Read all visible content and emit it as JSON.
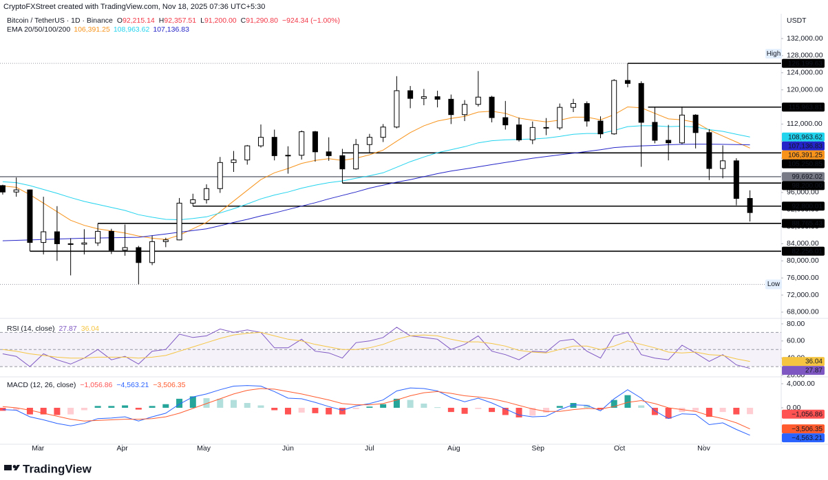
{
  "header": {
    "attribution": "CryptoFXStreet created with TradingView.com, Nov 18, 2025 07:36 UTC+5:30"
  },
  "footer": {
    "brand": "TradingView"
  },
  "chart_data": [
    {
      "type": "candlestick",
      "title": "Bitcoin / TetherUS · 1D · Binance",
      "ohlc_legend": [
        {
          "label": "O",
          "value": "92,215.14"
        },
        {
          "label": "H",
          "value": "92,357.51"
        },
        {
          "label": "L",
          "value": "91,200.00"
        },
        {
          "label": "C",
          "value": "91,290.80"
        }
      ],
      "change": "−924.34 (−1.00%)",
      "unit": "USDT",
      "xlim": [
        -0.2,
        57.3
      ],
      "ylim": [
        66700,
        137800
      ],
      "yticks": [
        {
          "value": 68000,
          "label": "68,000.00"
        },
        {
          "value": 72000,
          "label": "72,000.00"
        },
        {
          "value": 76000,
          "label": "76,000.00"
        },
        {
          "value": 80000,
          "label": "80,000.00"
        },
        {
          "value": 84000,
          "label": "84,000.00"
        },
        {
          "value": 88000,
          "label": "88,000.00"
        },
        {
          "value": 92000,
          "label": "92,000.00"
        },
        {
          "value": 96000,
          "label": "96,000.00"
        },
        {
          "value": 100000,
          "label": "100,000.00"
        },
        {
          "value": 104000,
          "label": "104,000.00"
        },
        {
          "value": 108000,
          "label": "108,000.00"
        },
        {
          "value": 112000,
          "label": "112,000.00"
        },
        {
          "value": 116000,
          "label": "116,000.00"
        },
        {
          "value": 120000,
          "label": "120,000.00"
        },
        {
          "value": 124000,
          "label": "124,000.00"
        },
        {
          "value": 128000,
          "label": "128,000.00"
        },
        {
          "value": 132000,
          "label": "132,000.00"
        }
      ],
      "grid": false,
      "up_color": "#ffffff",
      "down_color": "#000000",
      "open": [
        97600,
        96100,
        96600,
        84300,
        86800,
        84000,
        83900,
        84200,
        86900,
        82500,
        83100,
        79600,
        84500,
        84900,
        93500,
        94300,
        96900,
        103000,
        103600,
        106900,
        108900,
        104600,
        104700,
        110200,
        105500,
        104600,
        101500,
        107200,
        108900,
        111300,
        119800,
        118000,
        118400,
        117800,
        114200,
        116600,
        118300,
        113500,
        111800,
        108300,
        111200,
        111100,
        115900,
        116800,
        112700,
        109700,
        122200,
        121500,
        112400,
        108200,
        107600,
        114100,
        110000,
        101600,
        103400,
        94600
      ],
      "high": [
        97800,
        99500,
        96700,
        95000,
        92800,
        85300,
        87400,
        88700,
        87500,
        88500,
        83500,
        85900,
        85400,
        94700,
        95700,
        97900,
        104300,
        105700,
        107100,
        111900,
        110700,
        106800,
        110500,
        110400,
        108900,
        106200,
        108500,
        109700,
        112000,
        123200,
        120900,
        120200,
        119800,
        118900,
        117600,
        124400,
        118600,
        117400,
        113500,
        112600,
        113400,
        116800,
        117900,
        117300,
        113800,
        122500,
        126199.63,
        122000,
        115900,
        111800,
        116100,
        114300,
        110800,
        107000,
        104000,
        96500
      ],
      "low": [
        95500,
        95000,
        82300,
        81500,
        80000,
        76600,
        81500,
        83500,
        81600,
        81200,
        74500,
        79000,
        83200,
        84800,
        92800,
        93400,
        95900,
        100800,
        102500,
        106500,
        103500,
        100400,
        103700,
        103200,
        103400,
        98200,
        101300,
        105200,
        107800,
        111000,
        115700,
        116400,
        115900,
        112000,
        112700,
        116100,
        112400,
        110700,
        107900,
        107300,
        109400,
        110600,
        114800,
        111400,
        108700,
        109500,
        120600,
        102000,
        107500,
        103500,
        107300,
        106300,
        98900,
        99300,
        93000,
        89200
      ],
      "close": [
        96100,
        96600,
        84300,
        86800,
        84000,
        83900,
        84200,
        86900,
        82500,
        83100,
        79600,
        84500,
        84900,
        93500,
        94300,
        96900,
        103000,
        103600,
        106900,
        108900,
        104600,
        104700,
        110200,
        105500,
        104600,
        101500,
        107200,
        108900,
        111300,
        119800,
        118000,
        118400,
        117800,
        114200,
        116600,
        118300,
        113500,
        111800,
        108300,
        111200,
        111100,
        115900,
        116800,
        112700,
        109700,
        122200,
        121500,
        112400,
        108200,
        107600,
        114100,
        110000,
        101600,
        103400,
        94600,
        91290.8
      ],
      "ema": {
        "label": "EMA 20/50/100/200",
        "series": [
          {
            "color": "#f7931a",
            "last_label": "106,391.25",
            "values": [
              97500,
              97200,
              95500,
              93500,
              91500,
              89500,
              88300,
              87500,
              87000,
              86500,
              85800,
              85300,
              85000,
              86000,
              87500,
              89000,
              91500,
              94000,
              96500,
              99000,
              100600,
              101600,
              102800,
              103500,
              103900,
              103500,
              104000,
              104800,
              105900,
              108000,
              110000,
              111600,
              112700,
              113300,
              113800,
              114800,
              115000,
              114500,
              113400,
              112900,
              112500,
              112900,
              113600,
              113600,
              113000,
              114200,
              116000,
              115800,
              114500,
              113200,
              113000,
              112400,
              110600,
              109200,
              107800,
              106391.25
            ]
          },
          {
            "color": "#22d3ee",
            "last_label": "108,963.62",
            "values": [
              98500,
              98300,
              97600,
              96700,
              95800,
              94800,
              93900,
              93200,
              92500,
              91800,
              90800,
              90200,
              89700,
              89600,
              89900,
              90300,
              91200,
              92200,
              93300,
              94500,
              95400,
              96100,
              97000,
              97700,
              98300,
              98700,
              99300,
              99900,
              100600,
              101900,
              103200,
              104300,
              105300,
              106000,
              106700,
              107600,
              108100,
              108300,
              108400,
              108500,
              108700,
              109100,
              109600,
              109800,
              109800,
              110500,
              111400,
              111600,
              111600,
              111400,
              111500,
              111300,
              110700,
              110300,
              109600,
              108963.62
            ]
          },
          {
            "color": "#2424c8",
            "last_label": "107,136.83",
            "values": [
              84700,
              84800,
              84900,
              85000,
              85100,
              85200,
              85300,
              85350,
              85400,
              85450,
              85500,
              85900,
              86300,
              86700,
              87100,
              87500,
              88200,
              89000,
              89700,
              90500,
              91200,
              92000,
              92800,
              93600,
              94500,
              95300,
              96100,
              97000,
              97700,
              98400,
              99000,
              99700,
              100400,
              101000,
              101500,
              102000,
              102500,
              103000,
              103500,
              104000,
              104400,
              104800,
              105200,
              105600,
              106000,
              106500,
              106700,
              106900,
              107000,
              107150,
              107250,
              107300,
              107300,
              107250,
              107200,
              107136.83
            ]
          }
        ]
      },
      "levels": [
        {
          "value": 126199.63,
          "label": "126,199.63",
          "start": 46,
          "color": "#000000"
        },
        {
          "value": 115963.81,
          "label": "115,963.81",
          "start": 47.5,
          "color": "#000000"
        },
        {
          "value": 105250.85,
          "label": "105,250.85",
          "start": 25,
          "color": "#000000"
        },
        {
          "value": 99692.02,
          "label": "99,692.02",
          "start": -0.2,
          "color": "#787b86"
        },
        {
          "value": 98200,
          "label": "98,200.00",
          "start": 25,
          "color": "#000000"
        },
        {
          "value": 92800.01,
          "label": "92,800.01",
          "start": 14,
          "color": "#000000"
        },
        {
          "value": 88765.43,
          "label": "88,765.43",
          "start": 7,
          "color": "#000000"
        },
        {
          "value": 82256.01,
          "label": "82,256.01",
          "start": 2,
          "color": "#000000"
        }
      ],
      "high_label": "High",
      "low_label": "Low"
    },
    {
      "type": "line",
      "title": "RSI (14, close)",
      "ylim": [
        18,
        84
      ],
      "yticks": [
        {
          "value": 20,
          "label": "20.00"
        },
        {
          "value": 40,
          "label": "40.00"
        },
        {
          "value": 60,
          "label": "60.00"
        },
        {
          "value": 80,
          "label": "80.00"
        }
      ],
      "bands": [
        30,
        50,
        70
      ],
      "band_color": "#7e57c2",
      "series": [
        {
          "color": "#7e57c2",
          "last_label": "27.87",
          "values": [
            45,
            42,
            30,
            45,
            38,
            33,
            40,
            50,
            38,
            42,
            33,
            48,
            50,
            68,
            64,
            66,
            74,
            70,
            73,
            70,
            52,
            52,
            62,
            48,
            46,
            40,
            58,
            60,
            64,
            76,
            66,
            64,
            62,
            50,
            56,
            66,
            48,
            44,
            38,
            48,
            47,
            60,
            62,
            48,
            40,
            66,
            70,
            44,
            40,
            38,
            55,
            46,
            36,
            44,
            32,
            27.87
          ]
        },
        {
          "color": "#f5c542",
          "last_label": "36.04",
          "values": [
            50,
            48,
            45,
            43,
            41,
            40,
            40,
            41,
            41,
            41,
            40,
            41,
            43,
            48,
            53,
            58,
            63,
            67,
            69,
            70,
            66,
            62,
            60,
            56,
            53,
            50,
            50,
            52,
            56,
            62,
            66,
            67,
            66,
            62,
            59,
            59,
            57,
            54,
            49,
            47,
            46,
            50,
            54,
            54,
            50,
            54,
            60,
            56,
            52,
            47,
            46,
            47,
            44,
            43,
            39,
            36.04
          ]
        }
      ]
    },
    {
      "type": "macd",
      "title": "MACD (12, 26, close)",
      "ylim": [
        -5943,
        4914
      ],
      "yticks": [
        {
          "value": 0,
          "label": "0.00"
        },
        {
          "value": 4000,
          "label": "4,000.00"
        }
      ],
      "xticks": [
        {
          "value": 2.6,
          "label": "Mar"
        },
        {
          "value": 8.8,
          "label": "Apr"
        },
        {
          "value": 14.8,
          "label": "May"
        },
        {
          "value": 21,
          "label": "Jun"
        },
        {
          "value": 27,
          "label": "Jul"
        },
        {
          "value": 33.2,
          "label": "Aug"
        },
        {
          "value": 39.4,
          "label": "Sep"
        },
        {
          "value": 45.4,
          "label": "Oct"
        },
        {
          "value": 51.6,
          "label": "Nov"
        }
      ],
      "histogram": {
        "colors": [
          "#26a69a",
          "#b2dfdb",
          "#ff5252",
          "#ffcdd2"
        ],
        "last_label": "−1,056.86",
        "values": [
          -500,
          -400,
          -1100,
          -1100,
          -1200,
          -1100,
          -400,
          300,
          300,
          400,
          -300,
          300,
          600,
          1500,
          1900,
          1600,
          1500,
          1300,
          800,
          400,
          -400,
          -1100,
          -800,
          -900,
          -1100,
          -1100,
          -200,
          200,
          600,
          1500,
          1300,
          700,
          100,
          -700,
          -1000,
          -200,
          -700,
          -1200,
          -1600,
          -1300,
          -800,
          300,
          800,
          500,
          -300,
          1300,
          2100,
          400,
          -1200,
          -1800,
          -700,
          -500,
          -1500,
          -700,
          -1100,
          -1056.86
        ]
      },
      "series": [
        {
          "color": "#2962ff",
          "last_label": "−4,563.21",
          "values": [
            -300,
            -400,
            -1500,
            -2000,
            -2600,
            -3000,
            -2600,
            -1800,
            -1700,
            -1500,
            -2200,
            -1500,
            -900,
            600,
            1800,
            2300,
            3000,
            3600,
            3700,
            3600,
            2700,
            1600,
            1500,
            900,
            200,
            -400,
            300,
            700,
            1300,
            2800,
            3300,
            3200,
            2800,
            1700,
            1000,
            1600,
            800,
            -200,
            -1200,
            -1500,
            -1400,
            -300,
            500,
            400,
            -500,
            1500,
            3000,
            1600,
            -500,
            -1800,
            -1000,
            -1100,
            -2800,
            -2500,
            -3600,
            -4563.21
          ]
        },
        {
          "color": "#ff5b2e",
          "last_label": "−3,506.35",
          "values": [
            200,
            0,
            -400,
            -900,
            -1400,
            -1900,
            -2200,
            -2100,
            -2000,
            -1900,
            -1900,
            -1800,
            -1500,
            -900,
            -100,
            700,
            1500,
            2300,
            2900,
            3200,
            3100,
            2700,
            2300,
            1800,
            1300,
            700,
            500,
            500,
            700,
            1300,
            2000,
            2500,
            2700,
            2400,
            2000,
            1800,
            1500,
            1000,
            400,
            -200,
            -600,
            -600,
            -300,
            -100,
            -200,
            200,
            900,
            1200,
            700,
            0,
            -300,
            -600,
            -1300,
            -1800,
            -2500,
            -3506.35
          ]
        }
      ]
    }
  ]
}
